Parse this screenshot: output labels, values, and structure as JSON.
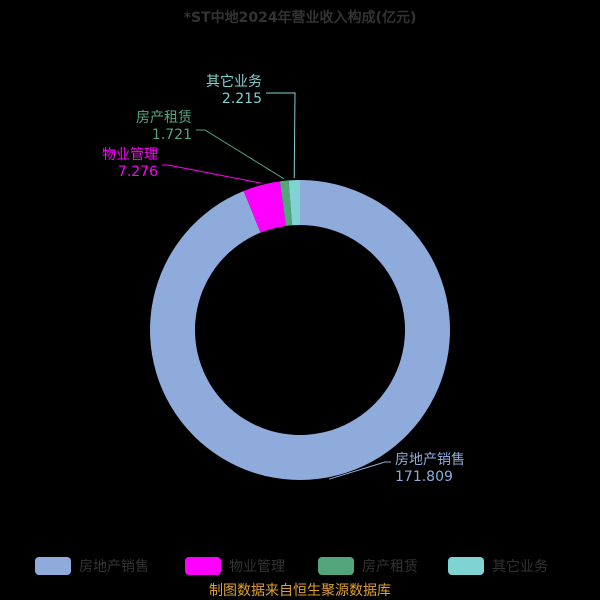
{
  "chart_data": {
    "type": "donut",
    "title": "*ST中地2024年营业收入构成(亿元)",
    "categories": [
      "房地产销售",
      "物业管理",
      "房产租赁",
      "其它业务"
    ],
    "values": [
      171.809,
      7.276,
      1.721,
      2.215
    ],
    "colors": [
      "#8eabdb",
      "#ff00ff",
      "#52a67a",
      "#7fd3d3"
    ],
    "legend": "bottom",
    "source": "制图数据来自恒生聚源数据库"
  }
}
